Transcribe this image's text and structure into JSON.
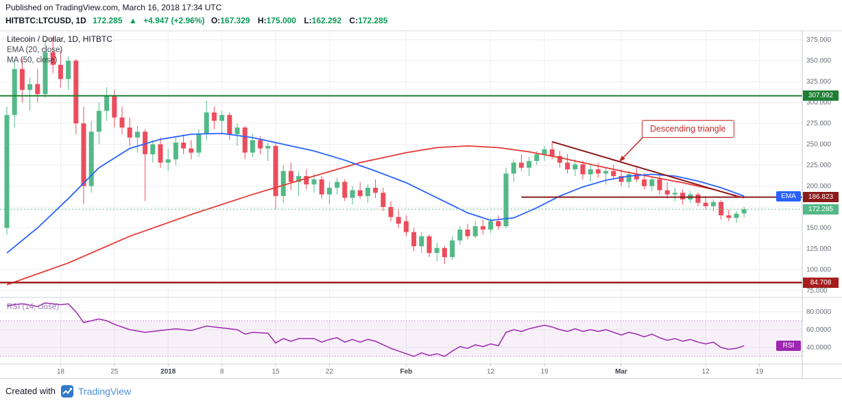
{
  "page": {
    "published_line": "Published on TradingView.com, March 16, 2018 17:34 UTC",
    "footer_prefix": "Created with",
    "footer_brand": "TradingView"
  },
  "symbol_bar": {
    "symbol": "HITBTC:LTCUSD, 1D",
    "last": "172.285",
    "change_arrow": "▲",
    "change": "+4.947 (+2.96%)",
    "ohlc": [
      {
        "k": "O:",
        "v": "167.329"
      },
      {
        "k": "H:",
        "v": "175.000"
      },
      {
        "k": "L:",
        "v": "162.292"
      },
      {
        "k": "C:",
        "v": "172.285"
      }
    ]
  },
  "legend": {
    "title": "Litecoin / Dollar, 1D, HITBTC",
    "ema": "EMA (20, close)",
    "ma": "MA (50, close)",
    "rsi": "RSI (14, close)"
  },
  "annotation": {
    "text": "Descending triangle"
  },
  "colors": {
    "candle_up": "#53b987",
    "candle_down": "#eb4d5c",
    "ema": "#2962ff",
    "ma": "#e53935",
    "rsi": "#9c27b0",
    "header_green": "#0b9b57",
    "annotation": "#c62828",
    "brand_blue": "#4a90d9"
  },
  "chart_data": {
    "type": "candlestick",
    "title": "Litecoin / Dollar, 1D, HITBTC",
    "symbol": "HITBTC:LTCUSD",
    "interval": "1D",
    "exchange": "HITBTC",
    "price_ticks": [
      {
        "value": 375,
        "label": "375.000"
      },
      {
        "value": 350,
        "label": "350.000"
      },
      {
        "value": 325,
        "label": "325.000"
      },
      {
        "value": 300,
        "label": "300.000"
      },
      {
        "value": 275,
        "label": "275.000"
      },
      {
        "value": 250,
        "label": "250.000"
      },
      {
        "value": 225,
        "label": "225.000"
      },
      {
        "value": 200,
        "label": "200.000"
      },
      {
        "value": 175,
        "label": "175.000"
      },
      {
        "value": 150,
        "label": "150.000"
      },
      {
        "value": 125,
        "label": "125.000"
      },
      {
        "value": 100,
        "label": "100.000"
      },
      {
        "value": 75,
        "label": "75.000"
      }
    ],
    "rsi_ticks": [
      {
        "value": 80,
        "label": "80.0000"
      },
      {
        "value": 60,
        "label": "60.0000"
      },
      {
        "value": 40,
        "label": "40.0000"
      }
    ],
    "rsi_band": [
      30,
      70
    ],
    "time_ticks": [
      {
        "day": 7,
        "label": "18"
      },
      {
        "day": 14,
        "label": "25"
      },
      {
        "day": 21,
        "label": "2018",
        "bold": true
      },
      {
        "day": 28,
        "label": "8"
      },
      {
        "day": 35,
        "label": "15"
      },
      {
        "day": 42,
        "label": "22"
      },
      {
        "day": 52,
        "label": "Feb",
        "bold": true
      },
      {
        "day": 63,
        "label": "12"
      },
      {
        "day": 70,
        "label": "19"
      },
      {
        "day": 80,
        "label": "Mar",
        "bold": true
      },
      {
        "day": 91,
        "label": "12"
      },
      {
        "day": 98,
        "label": "19"
      }
    ],
    "candles": [
      [
        150,
        295,
        142,
        285
      ],
      [
        285,
        350,
        270,
        340
      ],
      [
        340,
        352,
        300,
        315
      ],
      [
        315,
        330,
        290,
        322
      ],
      [
        322,
        340,
        300,
        310
      ],
      [
        310,
        375,
        305,
        360
      ],
      [
        360,
        378,
        335,
        345
      ],
      [
        345,
        362,
        318,
        328
      ],
      [
        328,
        355,
        315,
        350
      ],
      [
        350,
        352,
        262,
        275
      ],
      [
        275,
        295,
        178,
        200
      ],
      [
        200,
        278,
        192,
        265
      ],
      [
        265,
        300,
        250,
        290
      ],
      [
        290,
        318,
        278,
        308
      ],
      [
        308,
        315,
        270,
        282
      ],
      [
        282,
        295,
        262,
        270
      ],
      [
        270,
        282,
        248,
        258
      ],
      [
        258,
        272,
        240,
        265
      ],
      [
        265,
        268,
        182,
        238
      ],
      [
        238,
        255,
        228,
        250
      ],
      [
        250,
        258,
        222,
        228
      ],
      [
        228,
        245,
        218,
        232
      ],
      [
        232,
        258,
        225,
        252
      ],
      [
        252,
        262,
        238,
        245
      ],
      [
        245,
        255,
        232,
        240
      ],
      [
        240,
        268,
        235,
        262
      ],
      [
        262,
        302,
        255,
        288
      ],
      [
        288,
        295,
        268,
        278
      ],
      [
        278,
        290,
        262,
        285
      ],
      [
        285,
        288,
        255,
        262
      ],
      [
        262,
        275,
        248,
        270
      ],
      [
        270,
        272,
        232,
        240
      ],
      [
        240,
        262,
        235,
        255
      ],
      [
        255,
        260,
        238,
        245
      ],
      [
        245,
        252,
        230,
        248
      ],
      [
        248,
        252,
        172,
        188
      ],
      [
        188,
        225,
        180,
        218
      ],
      [
        218,
        228,
        195,
        205
      ],
      [
        205,
        218,
        188,
        212
      ],
      [
        212,
        220,
        196,
        202
      ],
      [
        202,
        215,
        192,
        208
      ],
      [
        208,
        212,
        185,
        190
      ],
      [
        190,
        205,
        178,
        198
      ],
      [
        198,
        210,
        190,
        205
      ],
      [
        205,
        208,
        182,
        186
      ],
      [
        186,
        200,
        178,
        195
      ],
      [
        195,
        205,
        185,
        188
      ],
      [
        188,
        202,
        180,
        198
      ],
      [
        198,
        208,
        186,
        192
      ],
      [
        192,
        198,
        170,
        175
      ],
      [
        175,
        182,
        158,
        163
      ],
      [
        163,
        172,
        150,
        155
      ],
      [
        158,
        165,
        140,
        145
      ],
      [
        145,
        150,
        122,
        128
      ],
      [
        128,
        145,
        120,
        140
      ],
      [
        140,
        142,
        115,
        120
      ],
      [
        120,
        132,
        110,
        126
      ],
      [
        126,
        128,
        107,
        115
      ],
      [
        115,
        140,
        112,
        135
      ],
      [
        135,
        152,
        130,
        148
      ],
      [
        148,
        155,
        136,
        140
      ],
      [
        140,
        158,
        138,
        152
      ],
      [
        152,
        160,
        142,
        148
      ],
      [
        148,
        162,
        144,
        158
      ],
      [
        158,
        165,
        148,
        152
      ],
      [
        152,
        222,
        150,
        215
      ],
      [
        215,
        232,
        205,
        228
      ],
      [
        228,
        238,
        218,
        222
      ],
      [
        222,
        235,
        212,
        230
      ],
      [
        230,
        242,
        225,
        238
      ],
      [
        238,
        248,
        230,
        244
      ],
      [
        244,
        253,
        232,
        236
      ],
      [
        236,
        242,
        222,
        228
      ],
      [
        228,
        238,
        215,
        220
      ],
      [
        220,
        232,
        212,
        226
      ],
      [
        226,
        230,
        208,
        214
      ],
      [
        214,
        225,
        205,
        220
      ],
      [
        220,
        228,
        210,
        215
      ],
      [
        215,
        222,
        202,
        218
      ],
      [
        218,
        226,
        208,
        212
      ],
      [
        212,
        220,
        200,
        205
      ],
      [
        205,
        218,
        198,
        214
      ],
      [
        214,
        222,
        205,
        208
      ],
      [
        208,
        216,
        196,
        200
      ],
      [
        200,
        212,
        194,
        208
      ],
      [
        208,
        215,
        190,
        195
      ],
      [
        195,
        205,
        185,
        190
      ],
      [
        190,
        198,
        182,
        192
      ],
      [
        192,
        196,
        178,
        184
      ],
      [
        184,
        194,
        180,
        190
      ],
      [
        190,
        192,
        176,
        180
      ],
      [
        180,
        188,
        172,
        176
      ],
      [
        176,
        184,
        170,
        181
      ],
      [
        181,
        183,
        160,
        165
      ],
      [
        165,
        172,
        158,
        162
      ],
      [
        162,
        170,
        156,
        167
      ],
      [
        167.329,
        175,
        162.292,
        172.285
      ]
    ],
    "ema20_points": [
      [
        0,
        120
      ],
      [
        4,
        150
      ],
      [
        8,
        185
      ],
      [
        12,
        222
      ],
      [
        16,
        245
      ],
      [
        20,
        256
      ],
      [
        24,
        262
      ],
      [
        28,
        263
      ],
      [
        32,
        258
      ],
      [
        36,
        250
      ],
      [
        40,
        242
      ],
      [
        44,
        231
      ],
      [
        48,
        218
      ],
      [
        52,
        204
      ],
      [
        56,
        186
      ],
      [
        60,
        168
      ],
      [
        63,
        159
      ],
      [
        66,
        162
      ],
      [
        69,
        174
      ],
      [
        72,
        188
      ],
      [
        75,
        199
      ],
      [
        78,
        207
      ],
      [
        81,
        212
      ],
      [
        84,
        214
      ],
      [
        87,
        212
      ],
      [
        90,
        206
      ],
      [
        93,
        198
      ],
      [
        96,
        188
      ]
    ],
    "ma50_points": [
      [
        0,
        82
      ],
      [
        8,
        108
      ],
      [
        16,
        140
      ],
      [
        24,
        166
      ],
      [
        32,
        190
      ],
      [
        40,
        212
      ],
      [
        46,
        228
      ],
      [
        52,
        240
      ],
      [
        56,
        246
      ],
      [
        60,
        248
      ],
      [
        64,
        246
      ],
      [
        68,
        241
      ],
      [
        72,
        234
      ],
      [
        76,
        226
      ],
      [
        80,
        218
      ],
      [
        84,
        211
      ],
      [
        88,
        204
      ],
      [
        92,
        196
      ],
      [
        96,
        186
      ]
    ],
    "rsi14_points": [
      [
        0,
        87
      ],
      [
        2,
        89
      ],
      [
        4,
        86
      ],
      [
        5,
        90
      ],
      [
        7,
        88
      ],
      [
        8,
        89
      ],
      [
        9,
        80
      ],
      [
        10,
        68
      ],
      [
        11,
        70
      ],
      [
        12,
        72
      ],
      [
        13,
        70
      ],
      [
        14,
        66
      ],
      [
        16,
        60
      ],
      [
        18,
        57
      ],
      [
        20,
        59
      ],
      [
        22,
        61
      ],
      [
        24,
        59
      ],
      [
        26,
        64
      ],
      [
        28,
        62
      ],
      [
        30,
        60
      ],
      [
        31,
        55
      ],
      [
        32,
        57
      ],
      [
        34,
        56
      ],
      [
        35,
        45
      ],
      [
        36,
        50
      ],
      [
        37,
        47
      ],
      [
        38,
        50
      ],
      [
        40,
        50
      ],
      [
        41,
        46
      ],
      [
        42,
        49
      ],
      [
        43,
        51
      ],
      [
        44,
        46
      ],
      [
        45,
        49
      ],
      [
        46,
        46
      ],
      [
        47,
        49
      ],
      [
        48,
        47
      ],
      [
        49,
        43
      ],
      [
        50,
        39
      ],
      [
        51,
        36
      ],
      [
        52,
        33
      ],
      [
        53,
        30
      ],
      [
        54,
        34
      ],
      [
        55,
        31
      ],
      [
        56,
        33
      ],
      [
        57,
        30
      ],
      [
        58,
        36
      ],
      [
        59,
        41
      ],
      [
        60,
        39
      ],
      [
        61,
        43
      ],
      [
        62,
        41
      ],
      [
        63,
        44
      ],
      [
        64,
        42
      ],
      [
        65,
        57
      ],
      [
        66,
        60
      ],
      [
        67,
        58
      ],
      [
        68,
        61
      ],
      [
        69,
        63
      ],
      [
        70,
        65
      ],
      [
        71,
        63
      ],
      [
        72,
        60
      ],
      [
        73,
        58
      ],
      [
        74,
        61
      ],
      [
        75,
        58
      ],
      [
        76,
        60
      ],
      [
        77,
        58
      ],
      [
        78,
        60
      ],
      [
        79,
        57
      ],
      [
        80,
        54
      ],
      [
        81,
        57
      ],
      [
        82,
        55
      ],
      [
        83,
        52
      ],
      [
        84,
        55
      ],
      [
        85,
        51
      ],
      [
        86,
        48
      ],
      [
        87,
        50
      ],
      [
        88,
        47
      ],
      [
        89,
        49
      ],
      [
        90,
        46
      ],
      [
        91,
        44
      ],
      [
        92,
        46
      ],
      [
        93,
        40
      ],
      [
        94,
        38
      ],
      [
        95,
        39
      ],
      [
        96,
        42
      ]
    ],
    "levels": [
      {
        "label": "307.992",
        "value": 307.992,
        "color": "#1e7e34",
        "width": 2
      },
      {
        "label": "186.823",
        "value": 186.823,
        "color": "#8b1a1a",
        "width": 2,
        "from_day": 67
      },
      {
        "label": "84.708",
        "value": 84.708,
        "color": "#a61d1d",
        "width": 2.5
      }
    ],
    "last_price_line": {
      "label": "172.285",
      "value": 172.285,
      "badge_bg": "#53b987",
      "style": "dotted"
    },
    "trendline": {
      "from_day": 71,
      "from_price": 253,
      "to_day": 95,
      "to_price": 188,
      "color": "#8b1a1a"
    },
    "badges": {
      "ema": {
        "label": "EMA",
        "value": 188,
        "bg": "#2962ff"
      },
      "rsi": {
        "label": "RSI",
        "value": 42,
        "bg": "#9c27b0"
      }
    }
  }
}
